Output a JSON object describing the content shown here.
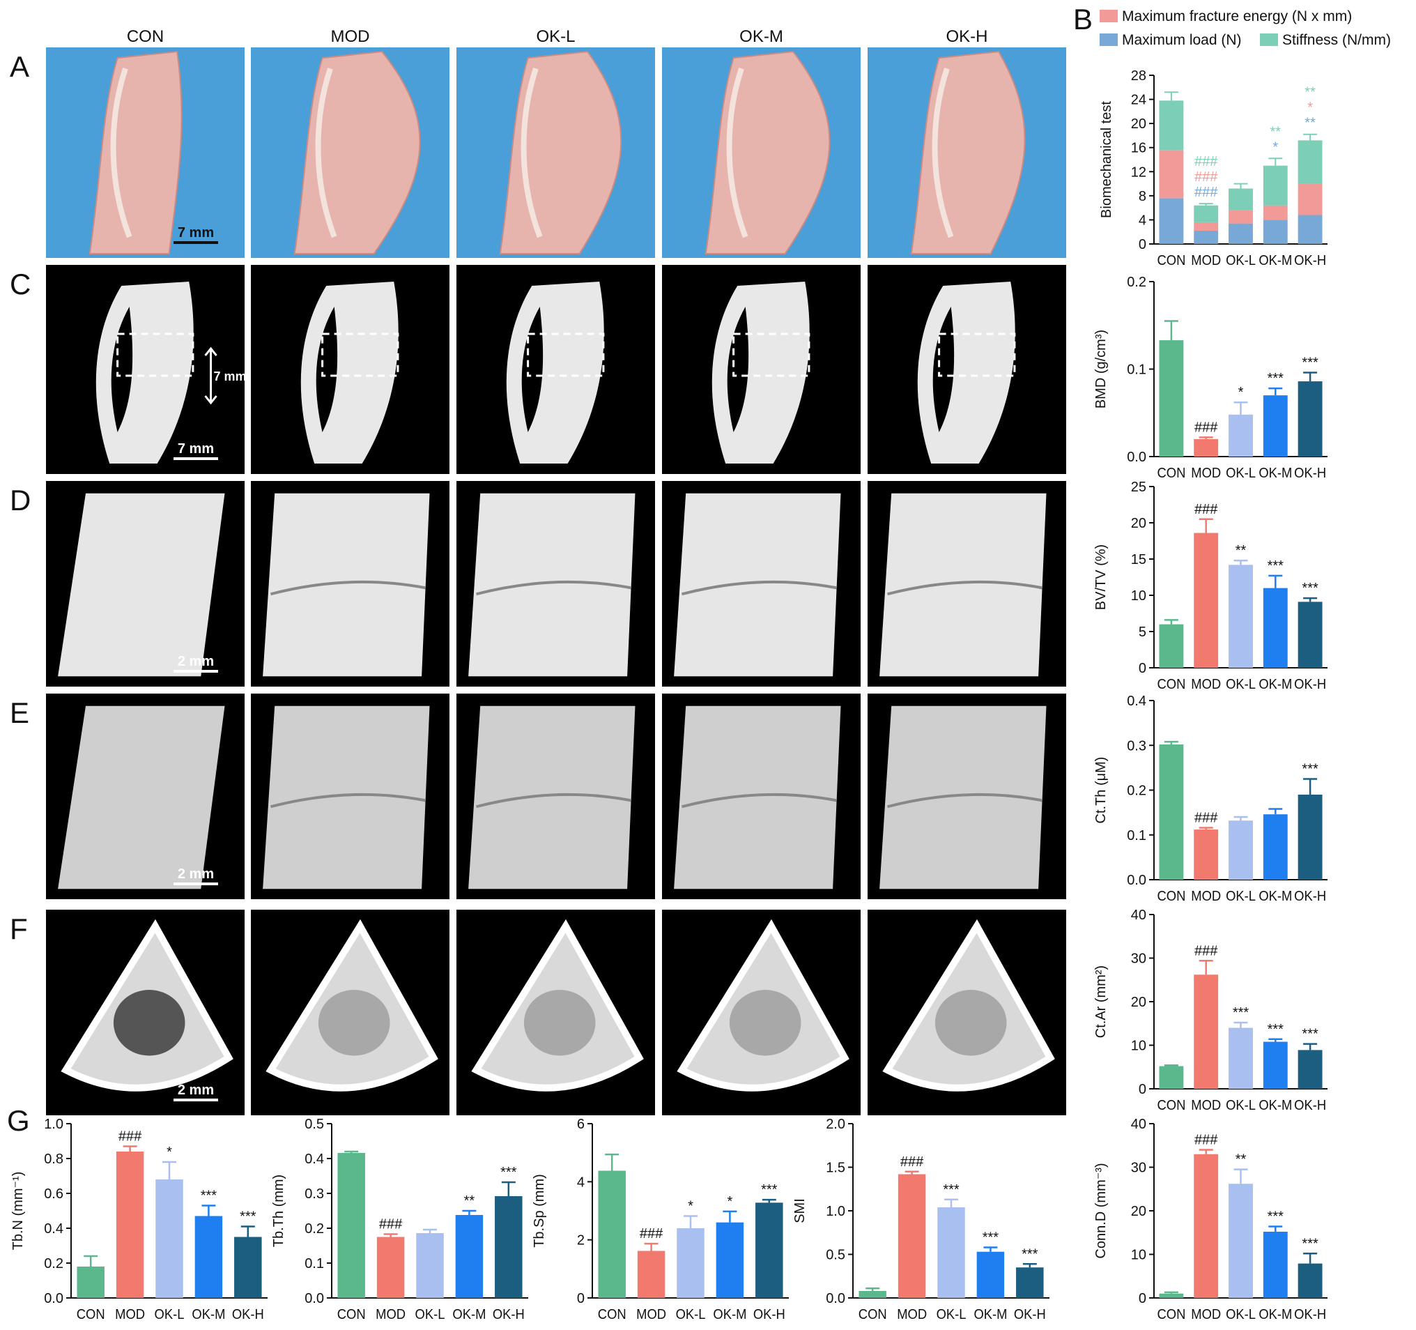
{
  "groups": [
    "CON",
    "MOD",
    "OK-L",
    "OK-M",
    "OK-H"
  ],
  "colors": {
    "CON": "#5bb88c",
    "MOD": "#f2796e",
    "OK-L": "#a9bff0",
    "OK-M": "#1f7ff0",
    "OK-H": "#1b5e80",
    "stiffness": "#7ccfb6",
    "energy": "#f29a98",
    "load": "#77a8d6",
    "photo_bg": "#4a9fd8",
    "scan_bg": "#000000"
  },
  "panels": {
    "A": {
      "letter": "A",
      "scale_label": "7 mm"
    },
    "C": {
      "letter": "C",
      "scale_label": "7 mm",
      "roi_label": "7 mm"
    },
    "D": {
      "letter": "D",
      "scale_label": "2 mm"
    },
    "E": {
      "letter": "E",
      "scale_label": "2 mm"
    },
    "F": {
      "letter": "F",
      "scale_label": "2 mm"
    },
    "G": {
      "letter": "G"
    },
    "B": {
      "letter": "B"
    }
  },
  "chart_data": [
    {
      "id": "biomech",
      "type": "bar",
      "stacked": true,
      "categories": [
        "CON",
        "MOD",
        "OK-L",
        "OK-M",
        "OK-H"
      ],
      "ylabel": "Biomechanical test",
      "ylim": [
        0,
        28
      ],
      "yticks": [
        "0",
        "4",
        "8",
        "12",
        "16",
        "20",
        "24",
        "28"
      ],
      "legend": [
        "Maximum fracture energy (N x mm)",
        "Maximum load (N)",
        "Stiffness (N/mm)"
      ],
      "series": [
        {
          "name": "Maximum load (N)",
          "values": [
            7.6,
            2.2,
            3.4,
            4.0,
            4.8
          ],
          "errors": [
            0.4,
            0.3,
            0.4,
            0.4,
            0.5
          ]
        },
        {
          "name": "Maximum fracture energy (N x mm)",
          "values": [
            8.0,
            1.4,
            2.2,
            2.4,
            5.2
          ],
          "errors": [
            0.6,
            0.3,
            0.4,
            0.5,
            0.6
          ]
        },
        {
          "name": "Stiffness (N/mm)",
          "values": [
            8.2,
            2.8,
            3.6,
            6.6,
            7.2
          ],
          "errors": [
            1.4,
            0.3,
            0.8,
            1.2,
            1.0
          ]
        }
      ],
      "annotations": [
        {
          "group": "MOD",
          "lines": [
            {
              "text": "###",
              "series": "Stiffness (N/mm)"
            },
            {
              "text": "###",
              "series": "Maximum fracture energy (N x mm)"
            },
            {
              "text": "###",
              "series": "Maximum load (N)"
            }
          ]
        },
        {
          "group": "OK-M",
          "lines": [
            {
              "text": "**",
              "series": "Stiffness (N/mm)"
            },
            {
              "text": "*",
              "series": "Maximum load (N)"
            }
          ]
        },
        {
          "group": "OK-H",
          "lines": [
            {
              "text": "**",
              "series": "Stiffness (N/mm)"
            },
            {
              "text": "*",
              "series": "Maximum fracture energy (N x mm)"
            },
            {
              "text": "**",
              "series": "Maximum load (N)"
            }
          ]
        }
      ]
    },
    {
      "id": "bmd",
      "type": "bar",
      "categories": [
        "CON",
        "MOD",
        "OK-L",
        "OK-M",
        "OK-H"
      ],
      "ylabel": "BMD (g/cm³)",
      "ylim": [
        0,
        0.2
      ],
      "yticks": [
        "0.0",
        "0.1",
        "0.2"
      ],
      "values": [
        0.133,
        0.02,
        0.048,
        0.07,
        0.086
      ],
      "errors": [
        0.022,
        0.002,
        0.014,
        0.008,
        0.01
      ],
      "sig": [
        "",
        "###",
        "*",
        "***",
        "***"
      ]
    },
    {
      "id": "bvtv",
      "type": "bar",
      "categories": [
        "CON",
        "MOD",
        "OK-L",
        "OK-M",
        "OK-H"
      ],
      "ylabel": "BV/TV (%)",
      "ylim": [
        0,
        25
      ],
      "yticks": [
        "0",
        "5",
        "10",
        "15",
        "20",
        "25"
      ],
      "values": [
        6.0,
        18.6,
        14.2,
        11.0,
        9.1
      ],
      "errors": [
        0.6,
        1.9,
        0.6,
        1.7,
        0.5
      ],
      "sig": [
        "",
        "###",
        "**",
        "***",
        "***"
      ]
    },
    {
      "id": "ctth",
      "type": "bar",
      "categories": [
        "CON",
        "MOD",
        "OK-L",
        "OK-M",
        "OK-H"
      ],
      "ylabel": "Ct.Th (μM)",
      "ylim": [
        0,
        0.4
      ],
      "yticks": [
        "0.0",
        "0.1",
        "0.2",
        "0.3",
        "0.4"
      ],
      "values": [
        0.302,
        0.112,
        0.132,
        0.146,
        0.19
      ],
      "errors": [
        0.006,
        0.004,
        0.008,
        0.012,
        0.035
      ],
      "sig": [
        "",
        "###",
        "",
        "",
        "***"
      ]
    },
    {
      "id": "ctar",
      "type": "bar",
      "categories": [
        "CON",
        "MOD",
        "OK-L",
        "OK-M",
        "OK-H"
      ],
      "ylabel": "Ct.Ar (mm²)",
      "ylim": [
        0,
        40
      ],
      "yticks": [
        "0",
        "10",
        "20",
        "30",
        "40"
      ],
      "values": [
        5.2,
        26.2,
        14.0,
        10.8,
        8.9
      ],
      "errors": [
        0.2,
        3.2,
        1.2,
        0.6,
        1.4
      ],
      "sig": [
        "",
        "###",
        "***",
        "***",
        "***"
      ]
    },
    {
      "id": "connd",
      "type": "bar",
      "categories": [
        "CON",
        "MOD",
        "OK-L",
        "OK-M",
        "OK-H"
      ],
      "ylabel": "Conn.D (mm⁻³)",
      "ylim": [
        0,
        40
      ],
      "yticks": [
        "0",
        "10",
        "20",
        "30",
        "40"
      ],
      "values": [
        1.0,
        33.0,
        26.2,
        15.2,
        7.9
      ],
      "errors": [
        0.3,
        1.0,
        3.3,
        1.2,
        2.3
      ],
      "sig": [
        "",
        "###",
        "**",
        "***",
        "***"
      ]
    },
    {
      "id": "tbn",
      "type": "bar",
      "categories": [
        "CON",
        "MOD",
        "OK-L",
        "OK-M",
        "OK-H"
      ],
      "ylabel": "Tb.N (mm⁻¹)",
      "ylim": [
        0,
        1.0
      ],
      "yticks": [
        "0.0",
        "0.2",
        "0.4",
        "0.6",
        "0.8",
        "1.0"
      ],
      "values": [
        0.18,
        0.84,
        0.68,
        0.47,
        0.35
      ],
      "errors": [
        0.06,
        0.03,
        0.1,
        0.06,
        0.06
      ],
      "sig": [
        "",
        "###",
        "*",
        "***",
        "***"
      ]
    },
    {
      "id": "tbth",
      "type": "bar",
      "categories": [
        "CON",
        "MOD",
        "OK-L",
        "OK-M",
        "OK-H"
      ],
      "ylabel": "Tb.Th (mm)",
      "ylim": [
        0,
        0.5
      ],
      "yticks": [
        "0.0",
        "0.1",
        "0.2",
        "0.3",
        "0.4",
        "0.5"
      ],
      "values": [
        0.416,
        0.175,
        0.186,
        0.238,
        0.292
      ],
      "errors": [
        0.004,
        0.008,
        0.01,
        0.012,
        0.04
      ],
      "sig": [
        "",
        "###",
        "",
        "**",
        "***"
      ]
    },
    {
      "id": "tbsp",
      "type": "bar",
      "categories": [
        "CON",
        "MOD",
        "OK-L",
        "OK-M",
        "OK-H"
      ],
      "ylabel": "Tb.Sp (mm)",
      "ylim": [
        0,
        6
      ],
      "yticks": [
        "0",
        "2",
        "4",
        "6"
      ],
      "values": [
        4.38,
        1.62,
        2.4,
        2.6,
        3.28
      ],
      "errors": [
        0.56,
        0.25,
        0.42,
        0.38,
        0.1
      ],
      "sig": [
        "",
        "###",
        "*",
        "*",
        "***"
      ]
    },
    {
      "id": "smi",
      "type": "bar",
      "categories": [
        "CON",
        "MOD",
        "OK-L",
        "OK-M",
        "OK-H"
      ],
      "ylabel": "SMI",
      "ylim": [
        0,
        2.0
      ],
      "yticks": [
        "0.0",
        "0.5",
        "1.0",
        "1.5",
        "2.0"
      ],
      "values": [
        0.08,
        1.42,
        1.04,
        0.53,
        0.35
      ],
      "errors": [
        0.03,
        0.03,
        0.09,
        0.05,
        0.04
      ],
      "sig": [
        "",
        "###",
        "***",
        "***",
        "***"
      ]
    }
  ]
}
